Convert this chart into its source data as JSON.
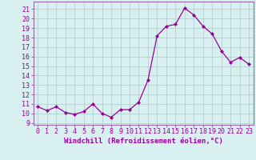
{
  "x": [
    0,
    1,
    2,
    3,
    4,
    5,
    6,
    7,
    8,
    9,
    10,
    11,
    12,
    13,
    14,
    15,
    16,
    17,
    18,
    19,
    20,
    21,
    22,
    23
  ],
  "y": [
    10.7,
    10.3,
    10.7,
    10.1,
    9.9,
    10.2,
    11.0,
    10.0,
    9.6,
    10.4,
    10.4,
    11.2,
    13.5,
    18.2,
    19.2,
    19.4,
    21.1,
    20.4,
    19.2,
    18.4,
    16.6,
    15.4,
    15.9,
    15.2
  ],
  "line_color": "#990099",
  "marker": "D",
  "marker_size": 2,
  "bg_color": "#d8f0f0",
  "grid_color": "#b8d4d4",
  "xlabel": "Windchill (Refroidissement éolien,°C)",
  "yticks": [
    9,
    10,
    11,
    12,
    13,
    14,
    15,
    16,
    17,
    18,
    19,
    20,
    21
  ],
  "xlim": [
    -0.5,
    23.5
  ],
  "ylim": [
    8.8,
    21.8
  ],
  "xlabel_fontsize": 6.5,
  "tick_fontsize": 6.0,
  "spine_color": "#9966aa"
}
